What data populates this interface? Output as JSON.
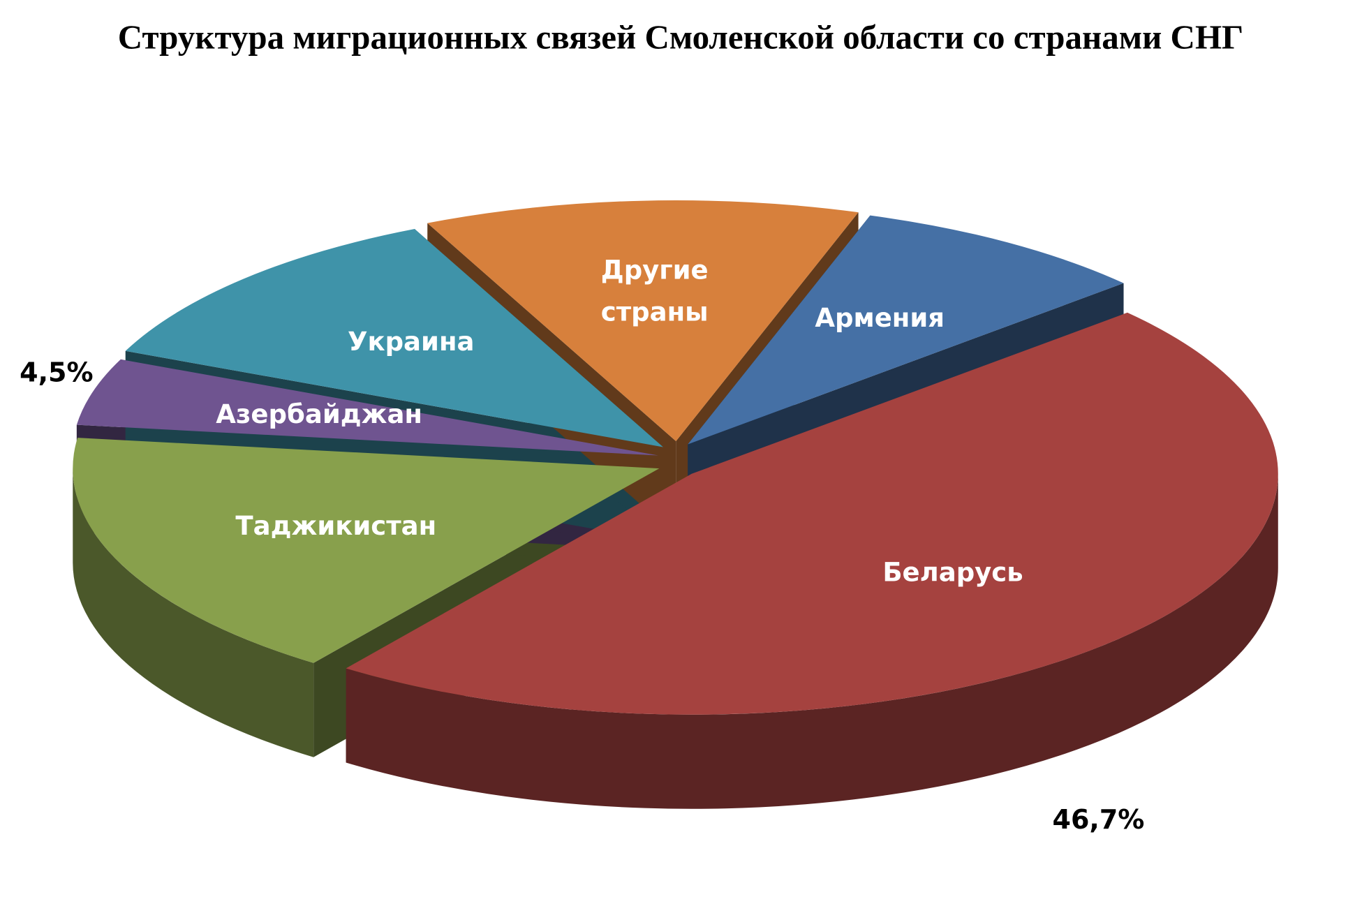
{
  "chart_data": {
    "type": "pie",
    "title": "Структура миграционных связей Смоленской области со странами СНГ",
    "categories": [
      "Беларусь",
      "Таджикистан",
      "Азербайджан",
      "Украина",
      "Другие страны",
      "Армения"
    ],
    "values": [
      46.7,
      17,
      4.5,
      11.5,
      12,
      8.3
    ],
    "value_labels": [
      "46,7%",
      null,
      "4,5%",
      null,
      null,
      null
    ],
    "colors": [
      "#a5423f",
      "#88a04c",
      "#6f5490",
      "#3f93a9",
      "#d7803c",
      "#4570a5"
    ]
  }
}
